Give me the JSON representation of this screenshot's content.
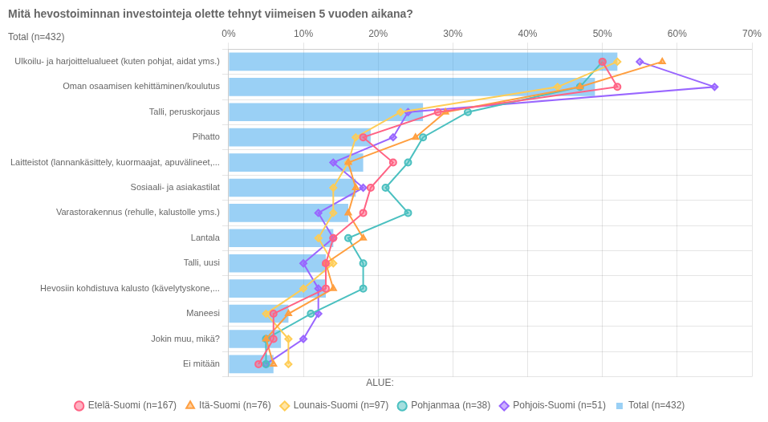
{
  "chart_data": {
    "type": "bar",
    "orientation": "horizontal",
    "title": "Mitä hevostoiminnan investointeja olette tehnyt viimeisen 5 vuoden aikana?",
    "annotations": [
      "Total (n=432)"
    ],
    "categories": [
      "Ulkoilu- ja harjoittelualueet (kuten pohjat, aidat yms.)",
      "Oman osaamisen kehittäminen/koulutus",
      "Talli, peruskorjaus",
      "Pihatto",
      "Laitteistot (lannankäsittely, kuormaajat, apuvälineet,...",
      "Sosiaali- ja asiakastilat",
      "Varastorakennus (rehulle, kalustolle yms.)",
      "Lantala",
      "Talli, uusi",
      "Hevosiin kohdistuva kalusto (kävelytyskone,...",
      "Maneesi",
      "Jokin muu, mikä?",
      "Ei mitään"
    ],
    "series": [
      {
        "name": "Total (n=432)",
        "type": "bar",
        "values": [
          52,
          49,
          26,
          19,
          18,
          17,
          16,
          14,
          13,
          13,
          8,
          7,
          6
        ]
      },
      {
        "name": "Etelä-Suomi (n=167)",
        "type": "line",
        "marker": "circle",
        "values": [
          50,
          52,
          28,
          18,
          22,
          19,
          18,
          14,
          13,
          13,
          6,
          6,
          4
        ]
      },
      {
        "name": "Itä-Suomi (n=76)",
        "type": "line",
        "marker": "triangle",
        "values": [
          58,
          47,
          29,
          25,
          16,
          17,
          16,
          18,
          13,
          14,
          8,
          5,
          6
        ]
      },
      {
        "name": "Lounais-Suomi (n=97)",
        "type": "line",
        "marker": "diamond",
        "values": [
          52,
          44,
          23,
          17,
          16,
          14,
          14,
          12,
          14,
          10,
          5,
          8,
          8
        ]
      },
      {
        "name": "Pohjanmaa (n=38)",
        "type": "line",
        "marker": "circle",
        "values": [
          50,
          47,
          32,
          26,
          24,
          21,
          24,
          16,
          18,
          18,
          11,
          5,
          5
        ]
      },
      {
        "name": "Pohjois-Suomi (n=51)",
        "type": "line",
        "marker": "diamond",
        "values": [
          55,
          65,
          24,
          22,
          14,
          18,
          12,
          14,
          10,
          12,
          12,
          10,
          5
        ]
      }
    ],
    "xlim": [
      0,
      70
    ],
    "xticks": [
      {
        "value": 0,
        "label": "0%"
      },
      {
        "value": 10,
        "label": "10%"
      },
      {
        "value": 20,
        "label": "20%"
      },
      {
        "value": 30,
        "label": "30%"
      },
      {
        "value": 40,
        "label": "40%"
      },
      {
        "value": 50,
        "label": "50%"
      },
      {
        "value": 60,
        "label": "60%"
      },
      {
        "value": 70,
        "label": "70%"
      }
    ],
    "grid": true,
    "legend": "bottom",
    "legend_title": "ALUE:"
  }
}
